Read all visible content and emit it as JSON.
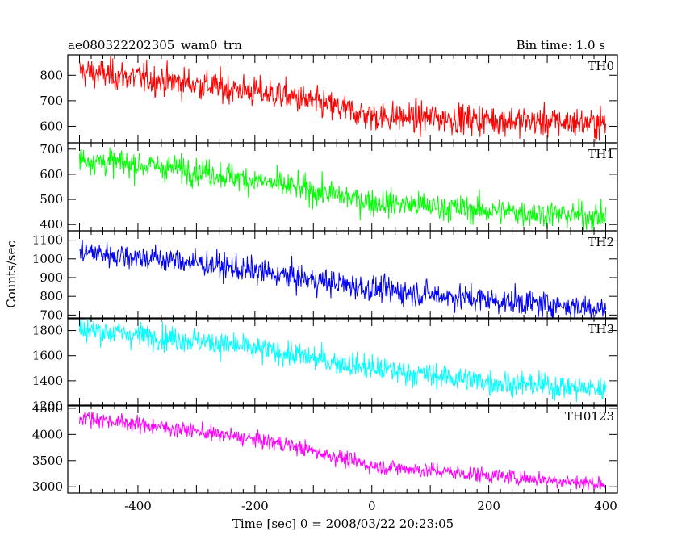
{
  "chart_data": {
    "type": "line",
    "title": "ae080322202305_wam0_trn",
    "bin_time": "Bin time: 1.0 s",
    "xlabel": "Time [sec] 0 = 2008/03/22 20:23:05",
    "ylabel": "Counts/sec",
    "xlim": [
      -520,
      420
    ],
    "xticks": [
      -400,
      -200,
      0,
      200,
      400
    ],
    "x_range_data": [
      -500,
      400
    ],
    "panels": [
      {
        "name": "TH0",
        "color": "#ff0000",
        "ylim": [
          535,
          880
        ],
        "yticks": [
          600,
          700,
          800
        ],
        "trend": [
          [
            -500,
            815
          ],
          [
            -300,
            765
          ],
          [
            -150,
            720
          ],
          [
            0,
            640
          ],
          [
            200,
            625
          ],
          [
            400,
            610
          ]
        ],
        "noise_sd": 30
      },
      {
        "name": "TH1",
        "color": "#00ff00",
        "ylim": [
          375,
          725
        ],
        "yticks": [
          400,
          500,
          600,
          700
        ],
        "trend": [
          [
            -500,
            660
          ],
          [
            -300,
            615
          ],
          [
            -150,
            555
          ],
          [
            0,
            490
          ],
          [
            200,
            455
          ],
          [
            400,
            430
          ]
        ],
        "noise_sd": 27
      },
      {
        "name": "TH2",
        "color": "#0000ff",
        "ylim": [
          680,
          1150
        ],
        "yticks": [
          700,
          800,
          900,
          1000,
          1100
        ],
        "trend": [
          [
            -500,
            1040
          ],
          [
            -300,
            980
          ],
          [
            -150,
            910
          ],
          [
            0,
            840
          ],
          [
            200,
            780
          ],
          [
            400,
            735
          ]
        ],
        "noise_sd": 35
      },
      {
        "name": "TH3",
        "color": "#00ffff",
        "ylim": [
          1200,
          1900
        ],
        "yticks": [
          1200,
          1400,
          1600,
          1800
        ],
        "trend": [
          [
            -500,
            1810
          ],
          [
            -300,
            1720
          ],
          [
            -150,
            1620
          ],
          [
            0,
            1500
          ],
          [
            200,
            1390
          ],
          [
            400,
            1330
          ]
        ],
        "noise_sd": 50
      },
      {
        "name": "TH0123",
        "color": "#ff00ff",
        "ylim": [
          2880,
          4560
        ],
        "yticks": [
          3000,
          3500,
          4000,
          4500
        ],
        "trend": [
          [
            -500,
            4330
          ],
          [
            -300,
            4060
          ],
          [
            -150,
            3820
          ],
          [
            0,
            3400
          ],
          [
            200,
            3220
          ],
          [
            400,
            3050
          ]
        ],
        "noise_sd": 75
      }
    ]
  }
}
